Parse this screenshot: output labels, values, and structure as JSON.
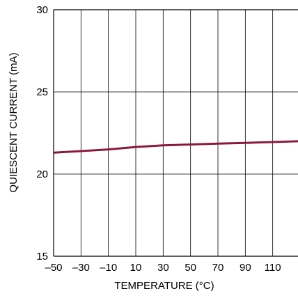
{
  "chart_data": {
    "type": "line",
    "title": "",
    "xlabel": "TEMPERATURE (°C)",
    "ylabel": "QUIESCENT CURRENT (mA)",
    "xlim": [
      -50,
      130
    ],
    "ylim": [
      15,
      30
    ],
    "x_ticks": [
      -50,
      -30,
      -10,
      10,
      30,
      50,
      70,
      90,
      110
    ],
    "x_tick_labels": [
      "–50",
      "–30",
      "–10",
      "10",
      "30",
      "50",
      "70",
      "90",
      "110"
    ],
    "x_gridlines": [
      -50,
      -30,
      -10,
      10,
      30,
      50,
      70,
      90,
      110,
      130
    ],
    "y_ticks": [
      15,
      20,
      25,
      30
    ],
    "y_tick_labels": [
      "15",
      "20",
      "25",
      "30"
    ],
    "y_gridlines": [
      15,
      20,
      25,
      30
    ],
    "grid": true,
    "series": [
      {
        "color": "#8b1a3a",
        "x": [
          -50,
          -30,
          -10,
          10,
          30,
          50,
          70,
          90,
          110,
          130
        ],
        "y": [
          21.3,
          21.4,
          21.5,
          21.65,
          21.75,
          21.8,
          21.85,
          21.9,
          21.95,
          22.0
        ]
      }
    ]
  }
}
